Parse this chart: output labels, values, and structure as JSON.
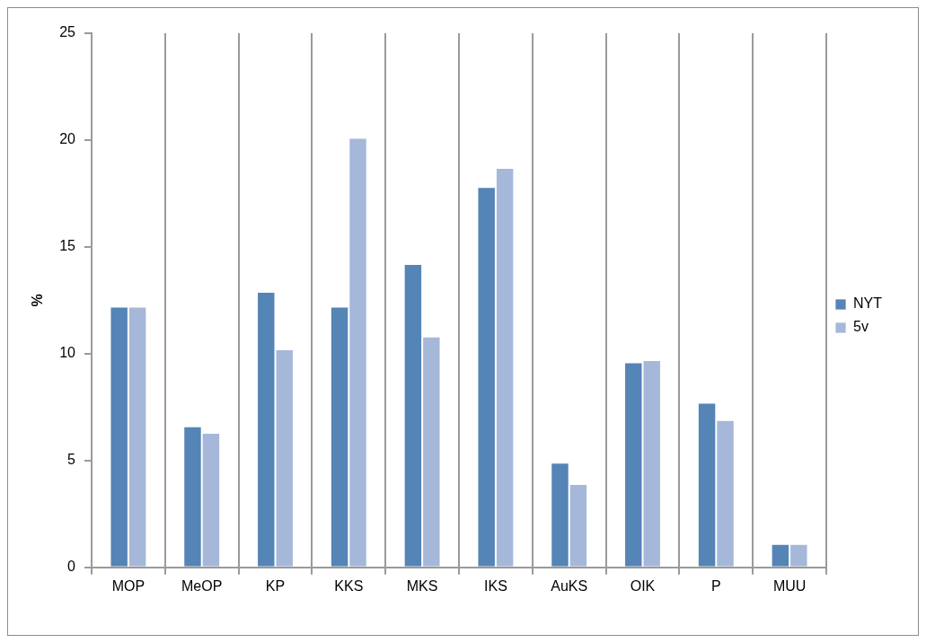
{
  "chart_data": {
    "type": "bar",
    "ylabel": "%",
    "categories": [
      "MOP",
      "MeOP",
      "KP",
      "KKS",
      "MKS",
      "IKS",
      "AuKS",
      "OIK",
      "P",
      "MUU"
    ],
    "series": [
      {
        "name": "NYT",
        "color": "#5584b6",
        "values": [
          12.2,
          6.6,
          12.9,
          12.2,
          14.2,
          17.8,
          4.9,
          9.6,
          7.7,
          1.1
        ]
      },
      {
        "name": "5v",
        "color": "#a5b8d9",
        "values": [
          12.2,
          6.3,
          10.2,
          20.1,
          10.8,
          18.7,
          3.9,
          9.7,
          6.9,
          1.1
        ]
      }
    ],
    "ylim": [
      0,
      25
    ],
    "yticks": [
      0,
      5,
      10,
      15,
      20,
      25
    ],
    "grid": "x",
    "legend": "right"
  }
}
